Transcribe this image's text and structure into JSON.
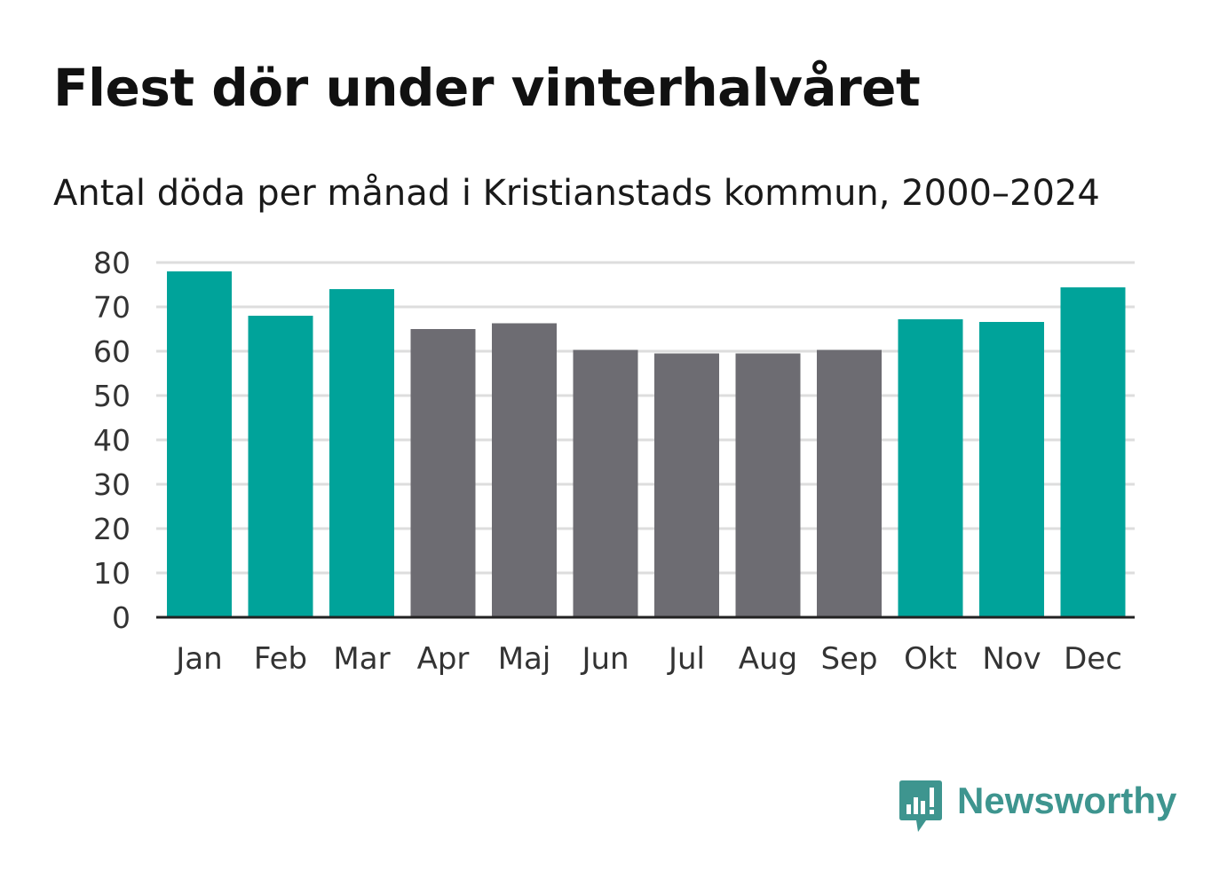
{
  "title": "Flest dör under vinterhalvåret",
  "subtitle": "Antal döda per månad i Kristianstads kommun, 2000–2024",
  "logo": {
    "text": "Newsworthy",
    "icon": "newsworthy-logo-icon"
  },
  "colors": {
    "highlight": "#00a39a",
    "default": "#6d6c72",
    "grid": "#dddddd",
    "axis": "#222222",
    "logo": "#3e958f"
  },
  "chart_data": {
    "type": "bar",
    "title": "Flest dör under vinterhalvåret",
    "subtitle": "Antal döda per månad i Kristianstads kommun, 2000–2024",
    "xlabel": "",
    "ylabel": "",
    "ylim": [
      0,
      80
    ],
    "yticks": [
      0,
      10,
      20,
      30,
      40,
      50,
      60,
      70,
      80
    ],
    "grid": true,
    "legend": "none",
    "categories": [
      "Jan",
      "Feb",
      "Mar",
      "Apr",
      "Maj",
      "Jun",
      "Jul",
      "Aug",
      "Sep",
      "Okt",
      "Nov",
      "Dec"
    ],
    "values": [
      78,
      68,
      74,
      65,
      66.3,
      60.3,
      59.5,
      59.5,
      60.3,
      67.2,
      66.6,
      74.4
    ],
    "highlighted": [
      true,
      true,
      true,
      false,
      false,
      false,
      false,
      false,
      false,
      true,
      true,
      true
    ]
  }
}
